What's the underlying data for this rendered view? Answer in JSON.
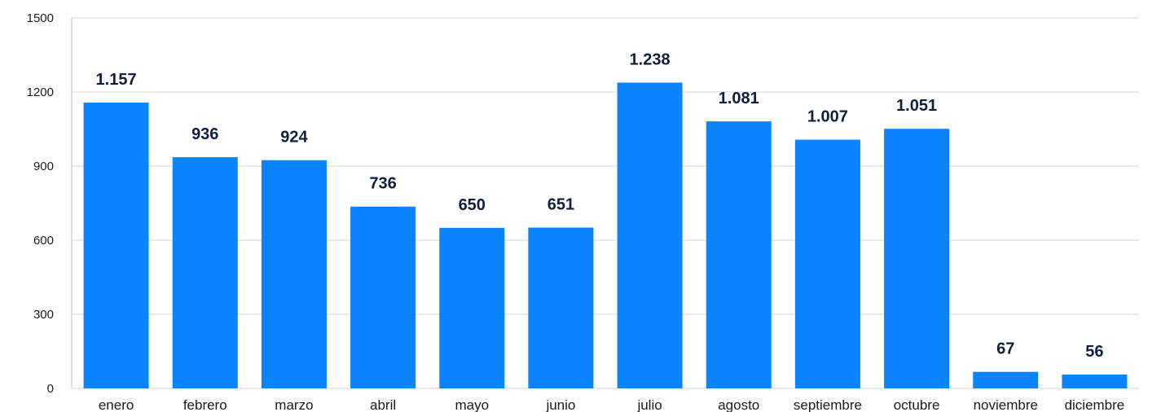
{
  "chart_data": {
    "type": "bar",
    "categories": [
      "enero",
      "febrero",
      "marzo",
      "abril",
      "mayo",
      "junio",
      "julio",
      "agosto",
      "septiembre",
      "octubre",
      "noviembre",
      "diciembre"
    ],
    "values": [
      1157,
      936,
      924,
      736,
      650,
      651,
      1238,
      1081,
      1007,
      1051,
      67,
      56
    ],
    "data_labels": [
      "1.157",
      "936",
      "924",
      "736",
      "650",
      "651",
      "1.238",
      "1.081",
      "1.007",
      "1.051",
      "67",
      "56"
    ],
    "y_ticks": [
      0,
      300,
      600,
      900,
      1200,
      1500
    ],
    "y_tick_labels": [
      "0",
      "300",
      "600",
      "900",
      "1200",
      "1500"
    ],
    "ylim": [
      0,
      1500
    ],
    "title": "",
    "xlabel": "",
    "ylabel": "",
    "grid": true,
    "bar_color": "#0a84ff"
  }
}
